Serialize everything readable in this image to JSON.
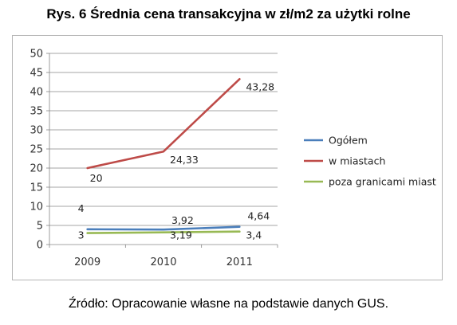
{
  "page": {
    "title": "Rys. 6 Średnia cena transakcyjna w zł/m2 za użytki rolne",
    "source": "Źródło: Opracowanie własne na podstawie danych GUS."
  },
  "chart_data": {
    "type": "line",
    "title": "Rys. 6 Średnia cena transakcyjna w zł/m2 za użytki rolne",
    "xlabel": "",
    "ylabel": "",
    "categories": [
      "2009",
      "2010",
      "2011"
    ],
    "ylim": [
      0,
      50
    ],
    "yticks": [
      0,
      5,
      10,
      15,
      20,
      25,
      30,
      35,
      40,
      45,
      50
    ],
    "grid": true,
    "legend_position": "right",
    "series": [
      {
        "name": "Ogółem",
        "color": "#4a7ebb",
        "values": [
          4,
          3.92,
          4.64
        ],
        "labels": [
          "4",
          "3,92",
          "4,64"
        ]
      },
      {
        "name": "w miastach",
        "color": "#be4b48",
        "values": [
          20,
          24.33,
          43.28
        ],
        "labels": [
          "20",
          "24,33",
          "43,28"
        ]
      },
      {
        "name": "poza granicami miast",
        "color": "#98b954",
        "values": [
          3,
          3.19,
          3.4
        ],
        "labels": [
          "3",
          "3,19",
          "3,4"
        ]
      }
    ]
  }
}
